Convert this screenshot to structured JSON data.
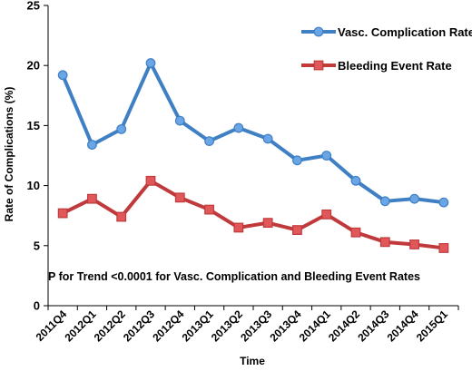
{
  "chart_data": {
    "type": "line",
    "title": "",
    "xlabel": "Time",
    "ylabel": "Rate of Complications (%)",
    "ylim": [
      0,
      25
    ],
    "yticks": [
      "0",
      "5",
      "10",
      "15",
      "20",
      "25"
    ],
    "categories": [
      "2011Q4",
      "2012Q1",
      "2012Q2",
      "2012Q3",
      "2012Q4",
      "2013Q1",
      "2013Q2",
      "2013Q3",
      "2013Q4",
      "2014Q1",
      "2014Q2",
      "2014Q3",
      "2014Q4",
      "2015Q1"
    ],
    "series": [
      {
        "name": "Vasc. Complication Rate",
        "color": "#3f7fc4",
        "marker": "circle",
        "values": [
          19.2,
          13.4,
          14.7,
          20.2,
          15.4,
          13.7,
          14.8,
          13.9,
          12.1,
          12.5,
          10.4,
          8.7,
          8.9,
          8.6
        ]
      },
      {
        "name": "Bleeding Event Rate",
        "color": "#c0393b",
        "marker": "square",
        "values": [
          7.7,
          8.9,
          7.4,
          10.4,
          9.0,
          8.0,
          6.5,
          6.9,
          6.3,
          7.6,
          6.1,
          5.3,
          5.1,
          4.8
        ]
      }
    ],
    "legend_position": "top-right",
    "annotation": "P for Trend <0.0001 for Vasc. Complication and Bleeding Event Rates",
    "grid": false
  }
}
